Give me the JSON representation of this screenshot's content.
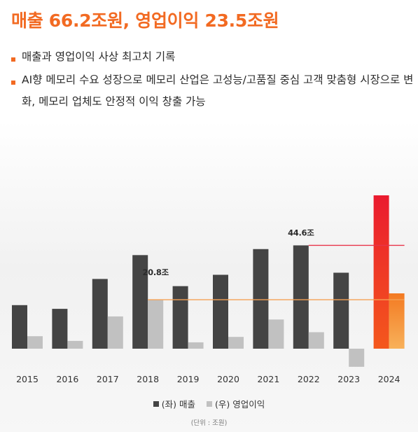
{
  "headline": "매출 66.2조원, 영업이익 23.5조원",
  "bullets": [
    "매출과 영업이익 사상 최고치 기록",
    "AI향 메모리 수요 성장으로 메모리 산업은 고성능/고품질 중심 고객 맞춤형 시장으로 변화, 메모리 업체도 안정적 이익 창출 가능"
  ],
  "legend": {
    "revenue_label": "(좌) 매출",
    "profit_label": "(우) 영업이익"
  },
  "unit_note": "(단위 : 조원)",
  "colors": {
    "accent": "#f26a22",
    "revenue_bar": "#444444",
    "profit_bar": "#c1c1c1",
    "revenue_2024_top": "#ea1b2f",
    "revenue_2024_bottom": "#f4581c",
    "profit_2024_top": "#f37a22",
    "profit_2024_bottom": "#f8b15a",
    "peak_revenue_line": "#e8344a",
    "peak_profit_line": "#f5a153"
  },
  "chart_data": {
    "type": "bar",
    "categories": [
      "2015",
      "2016",
      "2017",
      "2018",
      "2019",
      "2020",
      "2021",
      "2022",
      "2023",
      "2024"
    ],
    "series": [
      {
        "name": "(좌) 매출",
        "axis": "left",
        "values": [
          18.8,
          17.2,
          30.1,
          40.4,
          27.0,
          31.9,
          43.0,
          44.6,
          32.8,
          66.2
        ]
      },
      {
        "name": "(우) 영업이익",
        "axis": "right",
        "values": [
          5.3,
          3.3,
          13.7,
          20.8,
          2.7,
          5.0,
          12.4,
          7.0,
          -7.7,
          23.5
        ]
      }
    ],
    "annotations": [
      {
        "series": "(좌) 매출",
        "category": "2022",
        "text": "44.6조"
      },
      {
        "series": "(우) 영업이익",
        "category": "2018",
        "text": "20.8조"
      }
    ],
    "reference_lines": [
      {
        "series": "(좌) 매출",
        "value": 44.6,
        "from": "2022",
        "to": "2024"
      },
      {
        "series": "(우) 영업이익",
        "value": 20.8,
        "from": "2018",
        "to": "2024"
      }
    ],
    "ylim_left": [
      0,
      66.2
    ],
    "ylim_right": [
      -7.7,
      23.5
    ],
    "grid": false,
    "legend_position": "bottom-center"
  }
}
